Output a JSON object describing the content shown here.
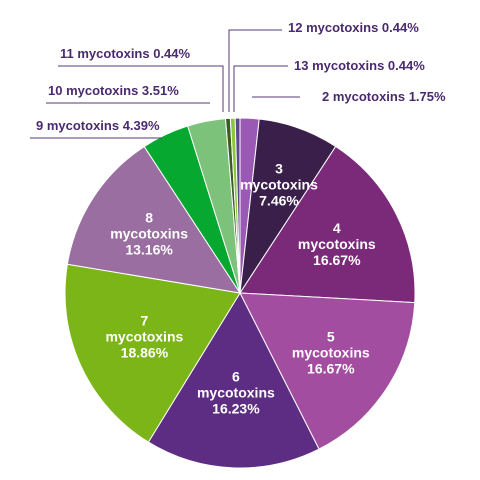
{
  "chart_data": {
    "type": "pie",
    "title": "",
    "slices": [
      {
        "label": "2 mycotoxins",
        "value": 1.75,
        "display": "1.75%",
        "color": "#9b59b6"
      },
      {
        "label": "3 mycotoxins",
        "value": 7.46,
        "display": "7.46%",
        "color": "#3b1f4b"
      },
      {
        "label": "4 mycotoxins",
        "value": 16.67,
        "display": "16.67%",
        "color": "#7b2a7a"
      },
      {
        "label": "5 mycotoxins",
        "value": 16.67,
        "display": "16.67%",
        "color": "#a24d9f"
      },
      {
        "label": "6 mycotoxins",
        "value": 16.23,
        "display": "16.23%",
        "color": "#5c2d82"
      },
      {
        "label": "7 mycotoxins",
        "value": 18.86,
        "display": "18.86%",
        "color": "#7cb518"
      },
      {
        "label": "8 mycotoxins",
        "value": 13.16,
        "display": "13.16%",
        "color": "#9a6ea1"
      },
      {
        "label": "9 mycotoxins",
        "value": 4.39,
        "display": "4.39%",
        "color": "#06a830"
      },
      {
        "label": "10 mycotoxins",
        "value": 3.51,
        "display": "3.51%",
        "color": "#7dc27a"
      },
      {
        "label": "11 mycotoxins",
        "value": 0.44,
        "display": "0.44%",
        "color": "#3d5c1f"
      },
      {
        "label": "12 mycotoxins",
        "value": 0.44,
        "display": "0.44%",
        "color": "#8cc63f"
      },
      {
        "label": "13 mycotoxins",
        "value": 0.44,
        "display": "0.44%",
        "color": "#5b4a8a"
      }
    ]
  }
}
